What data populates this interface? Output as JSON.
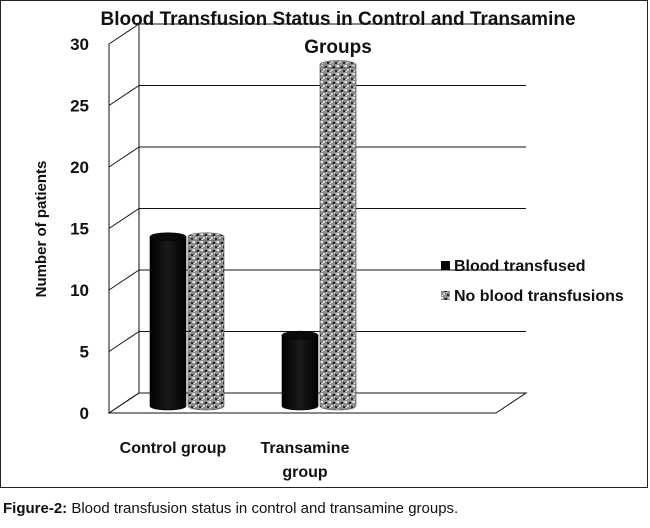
{
  "chart_data": {
    "type": "bar",
    "title_lines": [
      "Blood Transfusion Status in Control and Transamine",
      "Groups"
    ],
    "ylabel": "Number of patients",
    "xlabel": "",
    "ylim": [
      0,
      30
    ],
    "yticks": [
      0,
      5,
      10,
      15,
      20,
      25,
      30
    ],
    "grid": true,
    "legend_position": "right",
    "categories": [
      {
        "lines": [
          "Control group"
        ]
      },
      {
        "lines": [
          "Transamine",
          "group"
        ]
      }
    ],
    "series": [
      {
        "name": "Blood transfused",
        "values": [
          14,
          6
        ],
        "color": "#000000",
        "texture": "solid"
      },
      {
        "name": "No blood transfusions",
        "values": [
          14,
          28
        ],
        "color": "#9a9a9a",
        "texture": "speckled"
      }
    ]
  },
  "caption": {
    "label": "Figure-2:",
    "text": " Blood transfusion status in control and transamine groups."
  }
}
